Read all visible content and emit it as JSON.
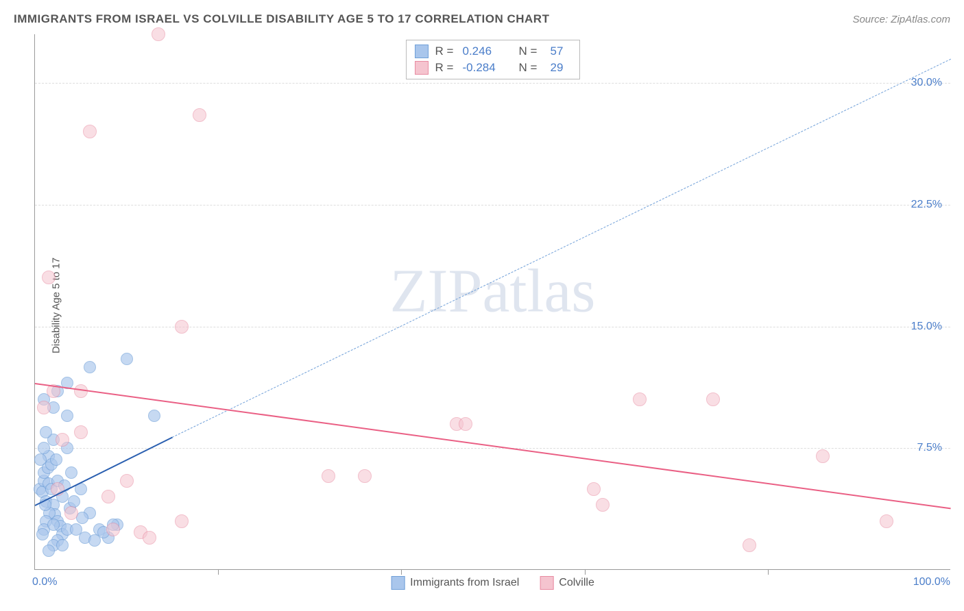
{
  "title": "IMMIGRANTS FROM ISRAEL VS COLVILLE DISABILITY AGE 5 TO 17 CORRELATION CHART",
  "source": "Source: ZipAtlas.com",
  "ylabel": "Disability Age 5 to 17",
  "watermark": "ZIPatlas",
  "chart": {
    "type": "scatter",
    "xlim": [
      0,
      100
    ],
    "ylim": [
      0,
      33
    ],
    "yticks": [
      7.5,
      15.0,
      22.5,
      30.0
    ],
    "ytick_labels": [
      "7.5%",
      "15.0%",
      "22.5%",
      "30.0%"
    ],
    "xtick_marks": [
      20,
      40,
      60,
      80
    ],
    "xtick_labels": [
      {
        "pos": 0,
        "text": "0.0%",
        "align": "left"
      },
      {
        "pos": 100,
        "text": "100.0%",
        "align": "right"
      }
    ],
    "background_color": "#ffffff",
    "grid_color": "#dddddd",
    "axis_color": "#999999",
    "series": [
      {
        "name": "Immigrants from Israel",
        "fill": "#a9c6ec",
        "stroke": "#6f9fd8",
        "fill_opacity": 0.65,
        "marker_radius": 9,
        "r_value": "0.246",
        "n_value": "57",
        "trend": {
          "solid": {
            "x1": 0,
            "y1": 4.0,
            "x2": 15,
            "y2": 8.2,
            "color": "#2a5fb0",
            "width": 2.5
          },
          "dashed": {
            "x1": 15,
            "y1": 8.2,
            "x2": 100,
            "y2": 31.5,
            "color": "#6f9fd8",
            "width": 1.5
          }
        },
        "points": [
          [
            0.5,
            5.0
          ],
          [
            0.8,
            4.8
          ],
          [
            1.0,
            5.5
          ],
          [
            1.2,
            4.2
          ],
          [
            1.5,
            5.3
          ],
          [
            1.0,
            6.0
          ],
          [
            1.4,
            6.3
          ],
          [
            1.8,
            5.0
          ],
          [
            2.0,
            4.0
          ],
          [
            2.2,
            3.4
          ],
          [
            2.5,
            3.0
          ],
          [
            1.6,
            3.5
          ],
          [
            1.2,
            3.0
          ],
          [
            1.0,
            2.5
          ],
          [
            0.8,
            2.2
          ],
          [
            2.8,
            2.7
          ],
          [
            3.0,
            2.2
          ],
          [
            2.5,
            1.8
          ],
          [
            2.0,
            1.5
          ],
          [
            1.5,
            1.2
          ],
          [
            3.5,
            2.5
          ],
          [
            3.0,
            4.5
          ],
          [
            2.5,
            5.5
          ],
          [
            1.5,
            7.0
          ],
          [
            1.0,
            7.5
          ],
          [
            2.0,
            8.0
          ],
          [
            3.5,
            7.5
          ],
          [
            4.0,
            6.0
          ],
          [
            5.0,
            5.0
          ],
          [
            4.5,
            2.5
          ],
          [
            5.5,
            2.0
          ],
          [
            6.0,
            3.5
          ],
          [
            7.0,
            2.5
          ],
          [
            8.0,
            2.0
          ],
          [
            9.0,
            2.8
          ],
          [
            3.5,
            9.5
          ],
          [
            2.0,
            10.0
          ],
          [
            1.0,
            10.5
          ],
          [
            2.5,
            11.0
          ],
          [
            3.5,
            11.5
          ],
          [
            10.0,
            13.0
          ],
          [
            6.0,
            12.5
          ],
          [
            7.5,
            2.3
          ],
          [
            1.2,
            8.5
          ],
          [
            0.6,
            6.8
          ],
          [
            1.1,
            4.0
          ],
          [
            1.8,
            6.5
          ],
          [
            2.3,
            6.8
          ],
          [
            3.2,
            5.2
          ],
          [
            3.8,
            3.8
          ],
          [
            4.3,
            4.2
          ],
          [
            5.2,
            3.2
          ],
          [
            6.5,
            1.8
          ],
          [
            8.5,
            2.8
          ],
          [
            3.0,
            1.5
          ],
          [
            2.0,
            2.8
          ],
          [
            13.0,
            9.5
          ]
        ]
      },
      {
        "name": "Colville",
        "fill": "#f5c4cf",
        "stroke": "#e88ba1",
        "fill_opacity": 0.55,
        "marker_radius": 10,
        "r_value": "-0.284",
        "n_value": "29",
        "trend": {
          "solid": {
            "x1": 0,
            "y1": 11.5,
            "x2": 100,
            "y2": 3.8,
            "color": "#ea5f84",
            "width": 2.5
          }
        },
        "points": [
          [
            1.0,
            10.0
          ],
          [
            3.0,
            8.0
          ],
          [
            2.0,
            11.0
          ],
          [
            1.5,
            18.0
          ],
          [
            6.0,
            27.0
          ],
          [
            13.5,
            33.0
          ],
          [
            18.0,
            28.0
          ],
          [
            16.0,
            15.0
          ],
          [
            16.0,
            3.0
          ],
          [
            8.0,
            4.5
          ],
          [
            5.0,
            8.5
          ],
          [
            32.0,
            5.8
          ],
          [
            36.0,
            5.8
          ],
          [
            46.0,
            9.0
          ],
          [
            47.0,
            9.0
          ],
          [
            61.0,
            5.0
          ],
          [
            62.0,
            4.0
          ],
          [
            66.0,
            10.5
          ],
          [
            74.0,
            10.5
          ],
          [
            78.0,
            1.5
          ],
          [
            86.0,
            7.0
          ],
          [
            93.0,
            3.0
          ],
          [
            5.0,
            11.0
          ],
          [
            2.5,
            5.0
          ],
          [
            8.5,
            2.5
          ],
          [
            4.0,
            3.5
          ],
          [
            10.0,
            5.5
          ],
          [
            11.5,
            2.3
          ],
          [
            12.5,
            2.0
          ]
        ]
      }
    ]
  },
  "legend_bottom": [
    {
      "label": "Immigrants from Israel",
      "fill": "#a9c6ec",
      "stroke": "#6f9fd8"
    },
    {
      "label": "Colville",
      "fill": "#f5c4cf",
      "stroke": "#e88ba1"
    }
  ]
}
